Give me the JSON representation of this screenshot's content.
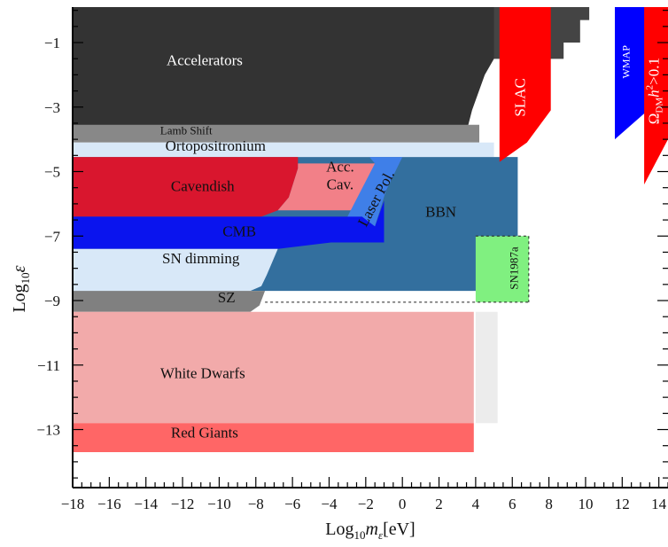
{
  "chart_data": {
    "type": "area",
    "title": "",
    "xlabel": "Log10 mε[eV]",
    "ylabel": "Log10 ε",
    "xlim": [
      -18,
      14.5
    ],
    "ylim": [
      -14.8,
      0.1
    ],
    "x_ticks": [
      -18,
      -16,
      -14,
      -12,
      -10,
      -8,
      -6,
      -4,
      -2,
      0,
      2,
      4,
      6,
      8,
      10,
      12,
      14
    ],
    "y_ticks": [
      -1,
      -3,
      -5,
      -7,
      -9,
      -11,
      -13
    ],
    "x_tick_labels": [
      "−18",
      "−16",
      "−14",
      "−12",
      "−10",
      "−8",
      "−6",
      "−4",
      "−2",
      "0",
      "2",
      "4",
      "6",
      "8",
      "10",
      "12",
      "14"
    ],
    "y_tick_labels": [
      "−1",
      "−3",
      "−5",
      "−7",
      "−9",
      "−11",
      "−13"
    ],
    "grid": false,
    "regions": [
      {
        "name": "Accelerators",
        "label": "Accelerators",
        "color": "#333333",
        "label_pos": [
          -10.8,
          -1.7
        ],
        "label_color": "#ffffff",
        "polygon": [
          [
            -18,
            0.1
          ],
          [
            8.8,
            0.1
          ],
          [
            8.8,
            -1.5
          ],
          [
            5,
            -1.5
          ],
          [
            4.5,
            -2.0
          ],
          [
            3.8,
            -3.1
          ],
          [
            3.6,
            -3.55
          ],
          [
            3.2,
            -3.7
          ],
          [
            -18,
            -3.7
          ]
        ]
      },
      {
        "name": "Accelerators (upper steps)",
        "color": "#444444",
        "polygon": [
          [
            5,
            0.1
          ],
          [
            10.2,
            0.1
          ],
          [
            10.2,
            -0.3
          ],
          [
            9.7,
            -0.3
          ],
          [
            9.7,
            -1.0
          ],
          [
            8.8,
            -1.0
          ],
          [
            8.8,
            -1.5
          ],
          [
            5,
            -1.5
          ]
        ]
      },
      {
        "name": "Lamb Shift",
        "label": "Lamb Shift",
        "color": "#888888",
        "label_pos": [
          -11.8,
          -3.85
        ],
        "label_small": true,
        "polygon": [
          [
            -18,
            -3.55
          ],
          [
            4.2,
            -3.55
          ],
          [
            4.2,
            -4.1
          ],
          [
            -18,
            -4.1
          ]
        ]
      },
      {
        "name": "Ortopositronium",
        "label": "Ortopositronium",
        "color": "#d8e8f8",
        "label_pos": [
          -10.2,
          -4.35
        ],
        "polygon": [
          [
            -18,
            -4.1
          ],
          [
            5,
            -4.1
          ],
          [
            5,
            -4.55
          ],
          [
            -18,
            -4.55
          ]
        ]
      },
      {
        "name": "BBN",
        "label": "BBN",
        "color": "#336f9e",
        "label_pos": [
          2.1,
          -6.4
        ],
        "polygon": [
          [
            -18,
            -4.55
          ],
          [
            6.3,
            -4.55
          ],
          [
            6.3,
            -8.7
          ],
          [
            -18,
            -8.7
          ]
        ]
      },
      {
        "name": "Cavendish",
        "label": "Cavendish",
        "color": "#d9162e",
        "label_pos": [
          -10.9,
          -5.6
        ],
        "polygon": [
          [
            -18,
            -4.55
          ],
          [
            -5.7,
            -4.55
          ],
          [
            -5.7,
            -4.9
          ],
          [
            -6.2,
            -5.8
          ],
          [
            -6.8,
            -6.2
          ],
          [
            -7.7,
            -6.4
          ],
          [
            -18,
            -6.4
          ]
        ]
      },
      {
        "name": "Acc. Cav.",
        "label": "Acc.",
        "label2": "Cav.",
        "color": "#f28088",
        "label_pos": [
          -3.4,
          -5.0
        ],
        "polygon": [
          [
            -5.7,
            -4.75
          ],
          [
            -1.5,
            -4.75
          ],
          [
            -2.5,
            -6.2
          ],
          [
            -6.8,
            -6.2
          ],
          [
            -6.2,
            -5.8
          ],
          [
            -5.7,
            -4.9
          ]
        ]
      },
      {
        "name": "Laser Pol.",
        "label": "Laser Pol.",
        "color": "#3f7fe8",
        "label_pos": [
          -1.2,
          -5.9
        ],
        "polygon": [
          [
            -1.8,
            -4.55
          ],
          [
            0,
            -4.55
          ],
          [
            -0.9,
            -5.6
          ],
          [
            -1.5,
            -6.7
          ],
          [
            -2.2,
            -6.7
          ],
          [
            -3.0,
            -6.4
          ],
          [
            -1.5,
            -4.75
          ]
        ]
      },
      {
        "name": "CMB",
        "label": "CMB",
        "color": "#0a14ee",
        "label_pos": [
          -8.9,
          -7.0
        ],
        "polygon": [
          [
            -18,
            -6.4
          ],
          [
            -2.2,
            -6.4
          ],
          [
            -1.5,
            -6.7
          ],
          [
            -1.0,
            -5.9
          ],
          [
            -1.0,
            -7.2
          ],
          [
            -3.9,
            -7.2
          ],
          [
            -6.8,
            -7.4
          ],
          [
            -18,
            -7.4
          ]
        ]
      },
      {
        "name": "SN dimming",
        "label": "SN dimming",
        "color": "#d8e8f8",
        "label_pos": [
          -11.0,
          -7.85
        ],
        "polygon": [
          [
            -18,
            -7.4
          ],
          [
            -6.8,
            -7.4
          ],
          [
            -7.4,
            -8.2
          ],
          [
            -7.7,
            -8.55
          ],
          [
            -8.3,
            -8.7
          ],
          [
            -18,
            -8.7
          ]
        ]
      },
      {
        "name": "SZ",
        "label": "SZ",
        "color": "#808080",
        "label_pos": [
          -9.6,
          -9.05
        ],
        "polygon": [
          [
            -18,
            -8.7
          ],
          [
            -7.5,
            -8.7
          ],
          [
            -7.8,
            -9.15
          ],
          [
            -8.3,
            -9.35
          ],
          [
            -18,
            -9.35
          ]
        ]
      },
      {
        "name": "White Dwarfs",
        "label": "White Dwarfs",
        "color": "#f2aaaa",
        "label_pos": [
          -10.9,
          -11.4
        ],
        "polygon": [
          [
            -18,
            -9.35
          ],
          [
            3.9,
            -9.35
          ],
          [
            3.9,
            -12.8
          ],
          [
            -18,
            -12.8
          ]
        ]
      },
      {
        "name": "Faint extension",
        "color": "#ececec",
        "polygon": [
          [
            4.0,
            -9.35
          ],
          [
            5.2,
            -9.35
          ],
          [
            5.2,
            -12.8
          ],
          [
            4.0,
            -12.8
          ]
        ]
      },
      {
        "name": "Red Giants",
        "label": "Red Giants",
        "color": "#ff6666",
        "label_pos": [
          -10.8,
          -13.25
        ],
        "polygon": [
          [
            -18,
            -12.8
          ],
          [
            3.9,
            -12.8
          ],
          [
            3.9,
            -13.7
          ],
          [
            -18,
            -13.7
          ]
        ]
      },
      {
        "name": "SN1987a",
        "label": "SN1987a",
        "color": "#80f080",
        "label_pos": [
          6.3,
          -8.0
        ],
        "label_small": true,
        "label_rotate": -90,
        "polygon": [
          [
            4.0,
            -7.0
          ],
          [
            6.9,
            -7.0
          ],
          [
            6.9,
            -9.05
          ],
          [
            4.0,
            -9.05
          ]
        ]
      },
      {
        "name": "SLAC",
        "label": "SLAC",
        "color": "#ff0000",
        "label_pos": [
          6.7,
          -2.7
        ],
        "label_color": "#ffffff",
        "label_rotate": -90,
        "polygon": [
          [
            5.3,
            0.1
          ],
          [
            8.1,
            0.1
          ],
          [
            8.1,
            -3.1
          ],
          [
            6.8,
            -4.1
          ],
          [
            5.3,
            -4.7
          ]
        ]
      },
      {
        "name": "WMAP",
        "label": "WMAP",
        "color": "#0000ff",
        "label_pos": [
          12.4,
          -1.6
        ],
        "label_color": "#ffffff",
        "label_small": true,
        "label_rotate": -90,
        "polygon": [
          [
            11.6,
            0.1
          ],
          [
            13.4,
            0.1
          ],
          [
            13.4,
            -3.1
          ],
          [
            11.6,
            -4.0
          ]
        ]
      },
      {
        "name": "Omega_DM h2 > 0.1",
        "label": "ΩDMh2>0.1",
        "color": "#ff0000",
        "label_pos": [
          14.0,
          -2.5
        ],
        "label_color": "#ffffff",
        "label_rotate": -90,
        "polygon": [
          [
            13.2,
            0.1
          ],
          [
            14.5,
            0.1
          ],
          [
            14.5,
            -4.0
          ],
          [
            13.2,
            -5.4
          ]
        ]
      }
    ]
  },
  "labels": {
    "accelerators": "Accelerators",
    "lamb_shift": "Lamb Shift",
    "ortopositronium": "Ortopositronium",
    "cavendish": "Cavendish",
    "acc_cav_line1": "Acc.",
    "acc_cav_line2": "Cav.",
    "laser_pol": "Laser Pol.",
    "bbn": "BBN",
    "cmb": "CMB",
    "sn_dimming": "SN dimming",
    "sz": "SZ",
    "white_dwarfs": "White Dwarfs",
    "red_giants": "Red Giants",
    "sn1987a": "SN1987a",
    "slac": "SLAC",
    "wmap": "WMAP",
    "omega_main": "Ω",
    "omega_sub": "DM",
    "omega_h": "h",
    "omega_sup": "2",
    "omega_rest": ">0.1",
    "x_title_prefix": "Log",
    "x_title_sub": "10",
    "x_title_m": "m",
    "x_title_eps": "ε",
    "x_title_unit": "[eV]",
    "y_title_prefix": "Log",
    "y_title_sub": "10",
    "y_title_eps": "ε"
  }
}
